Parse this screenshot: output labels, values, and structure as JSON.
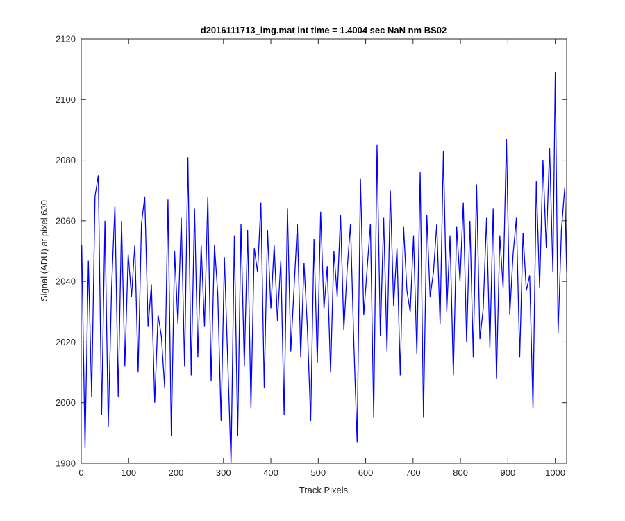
{
  "chart_data": {
    "type": "line",
    "title": "d2016111713_img.mat int time = 1.4004 sec  NaN nm BS02",
    "xlabel": "Track Pixels",
    "ylabel": "Signal (ADU) at pixel 630",
    "xlim": [
      0,
      1024
    ],
    "ylim": [
      1980,
      2120
    ],
    "xticks": [
      0,
      100,
      200,
      300,
      400,
      500,
      600,
      700,
      800,
      900,
      1000
    ],
    "yticks": [
      1980,
      2000,
      2020,
      2040,
      2060,
      2080,
      2100,
      2120
    ],
    "grid": false,
    "legend": "none",
    "line_color": "#0000ff",
    "series": [
      {
        "x": [
          1,
          8,
          15,
          22,
          29,
          36,
          43,
          50,
          57,
          64,
          71,
          78,
          85,
          92,
          99,
          106,
          113,
          120,
          127,
          134,
          141,
          148,
          155,
          162,
          169,
          176,
          183,
          190,
          197,
          204,
          211,
          218,
          225,
          232,
          239,
          246,
          253,
          260,
          267,
          274,
          281,
          288,
          295,
          302,
          309,
          316,
          323,
          330,
          337,
          344,
          351,
          358,
          365,
          372,
          379,
          386,
          393,
          400,
          407,
          414,
          421,
          428,
          435,
          442,
          449,
          456,
          463,
          470,
          477,
          484,
          491,
          498,
          505,
          512,
          519,
          526,
          533,
          540,
          547,
          554,
          561,
          568,
          575,
          582,
          589,
          596,
          603,
          610,
          617,
          624,
          631,
          638,
          645,
          652,
          659,
          666,
          673,
          680,
          687,
          694,
          701,
          708,
          715,
          722,
          729,
          736,
          743,
          750,
          757,
          764,
          771,
          778,
          785,
          792,
          799,
          806,
          813,
          820,
          827,
          834,
          841,
          848,
          855,
          862,
          869,
          876,
          883,
          890,
          897,
          904,
          911,
          918,
          925,
          932,
          939,
          946,
          953,
          960,
          967,
          974,
          981,
          988,
          995,
          1000,
          1006,
          1013,
          1020,
          1024
        ],
        "y": [
          2052,
          1985,
          2047,
          2002,
          2068,
          2075,
          1996,
          2060,
          1992,
          2038,
          2065,
          2002,
          2060,
          2012,
          2049,
          2035,
          2052,
          2010,
          2059,
          2068,
          2025,
          2039,
          2000,
          2029,
          2022,
          2005,
          2067,
          1989,
          2050,
          2026,
          2061,
          2012,
          2081,
          2009,
          2064,
          2015,
          2052,
          2025,
          2068,
          2007,
          2052,
          2036,
          1994,
          2048,
          2014,
          1980,
          2055,
          1989,
          2059,
          2012,
          2057,
          1998,
          2051,
          2043,
          2066,
          2005,
          2057,
          2031,
          2052,
          2027,
          2047,
          1996,
          2064,
          2017,
          2038,
          2059,
          2015,
          2046,
          2025,
          1994,
          2054,
          2013,
          2063,
          2031,
          2045,
          2010,
          2050,
          2035,
          2062,
          2024,
          2044,
          2059,
          2020,
          1987,
          2074,
          2029,
          2044,
          2059,
          1995,
          2085,
          2022,
          2061,
          2017,
          2070,
          2032,
          2051,
          2009,
          2058,
          2037,
          2030,
          2055,
          2016,
          2076,
          1995,
          2062,
          2035,
          2043,
          2059,
          2026,
          2083,
          2030,
          2055,
          2009,
          2058,
          2040,
          2066,
          2020,
          2060,
          2015,
          2072,
          2021,
          2031,
          2061,
          2018,
          2064,
          2008,
          2055,
          2038,
          2087,
          2029,
          2049,
          2061,
          2015,
          2056,
          2037,
          2042,
          1998,
          2073,
          2038,
          2080,
          2051,
          2084,
          2043,
          2109,
          2023,
          2057,
          2071,
          2043
        ]
      }
    ]
  }
}
